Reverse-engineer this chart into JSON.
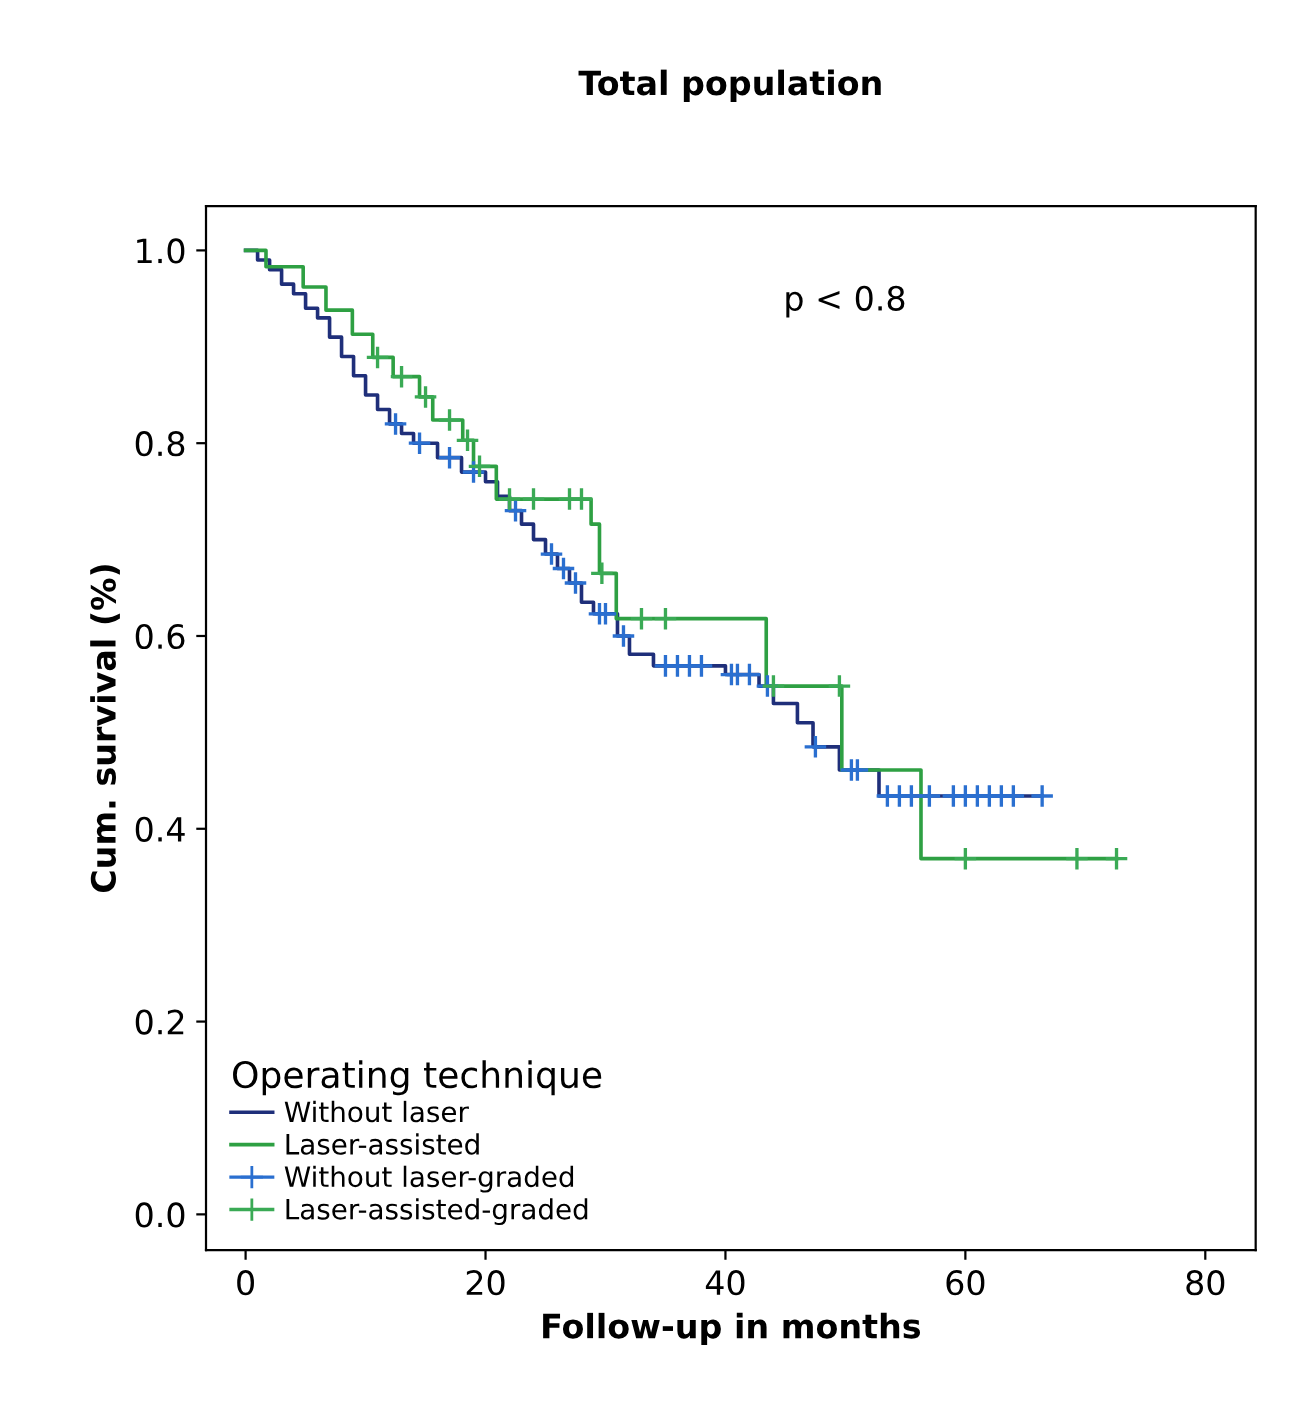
{
  "chart_data": {
    "type": "step",
    "title": "Total population",
    "xlabel": "Follow-up in months",
    "ylabel": "Cum. survival (%)",
    "legend_title": "Operating technique",
    "annotations": [
      "p < 0.8"
    ],
    "xlim": [
      -3.3,
      84.2
    ],
    "ylim": [
      -0.037,
      1.046
    ],
    "xticks": [
      0,
      20,
      40,
      60,
      80
    ],
    "yticks": [
      {
        "value": 0,
        "label": "0.0"
      },
      0.2,
      0.4,
      0.6,
      0.8,
      {
        "value": 1,
        "label": "1.0"
      }
    ],
    "grid": false,
    "legend": "bottom left",
    "series": [
      {
        "name": "Without laser",
        "color": "#1f2f7a",
        "x": [
          0,
          1,
          2,
          3,
          4,
          5,
          6,
          7,
          8,
          9,
          10,
          11,
          12,
          13,
          14,
          16,
          18,
          20,
          21,
          22,
          23,
          24,
          25,
          26,
          27,
          28,
          29,
          31,
          32,
          34,
          40,
          42.8,
          44,
          46,
          47.3,
          49.5,
          52.8,
          66.4
        ],
        "values": [
          1.0,
          0.99,
          0.98,
          0.965,
          0.955,
          0.94,
          0.93,
          0.91,
          0.89,
          0.87,
          0.85,
          0.835,
          0.82,
          0.81,
          0.8,
          0.785,
          0.77,
          0.76,
          0.745,
          0.73,
          0.716,
          0.7,
          0.685,
          0.67,
          0.655,
          0.635,
          0.623,
          0.6,
          0.581,
          0.569,
          0.56,
          0.548,
          0.53,
          0.51,
          0.485,
          0.461,
          0.434,
          0.434
        ]
      },
      {
        "name": "Laser-assisted",
        "color": "#2ea043",
        "x": [
          0,
          1.7,
          4.8,
          6.7,
          8.9,
          10.6,
          12.3,
          14.5,
          15.6,
          18.1,
          19,
          20.9,
          28.8,
          29.5,
          30.9,
          43.4,
          49.7,
          56.3,
          72.6
        ],
        "values": [
          1.0,
          0.983,
          0.962,
          0.938,
          0.913,
          0.889,
          0.869,
          0.848,
          0.824,
          0.803,
          0.776,
          0.742,
          0.716,
          0.665,
          0.618,
          0.548,
          0.461,
          0.369,
          0.369
        ]
      },
      {
        "name": "Without laser-graded",
        "type": "scatter",
        "marker": "cross",
        "color": "#2a6fd0",
        "x": [
          12.5,
          14.5,
          17,
          19,
          22.5,
          25.5,
          26.5,
          27.5,
          29.5,
          30,
          31.5,
          35,
          36,
          37,
          38,
          40.5,
          41,
          42,
          43.5,
          47.5,
          50.5,
          51,
          53.5,
          54.5,
          55.5,
          57,
          59,
          60,
          61,
          62,
          63,
          64,
          66.4
        ],
        "values": [
          0.82,
          0.8,
          0.785,
          0.77,
          0.73,
          0.685,
          0.67,
          0.655,
          0.623,
          0.623,
          0.6,
          0.569,
          0.569,
          0.569,
          0.569,
          0.56,
          0.56,
          0.56,
          0.548,
          0.485,
          0.461,
          0.461,
          0.434,
          0.434,
          0.434,
          0.434,
          0.434,
          0.434,
          0.434,
          0.434,
          0.434,
          0.434,
          0.434
        ]
      },
      {
        "name": "Laser-assisted-graded",
        "type": "scatter",
        "marker": "cross",
        "color": "#3aaa55",
        "x": [
          11,
          13,
          15,
          17,
          18.5,
          19.5,
          22,
          24,
          27,
          28,
          29.7,
          33,
          35,
          44,
          49.5,
          60,
          69.3,
          72.6
        ],
        "values": [
          0.889,
          0.869,
          0.848,
          0.824,
          0.803,
          0.776,
          0.742,
          0.742,
          0.742,
          0.742,
          0.665,
          0.618,
          0.618,
          0.548,
          0.548,
          0.369,
          0.369,
          0.369
        ]
      }
    ]
  }
}
